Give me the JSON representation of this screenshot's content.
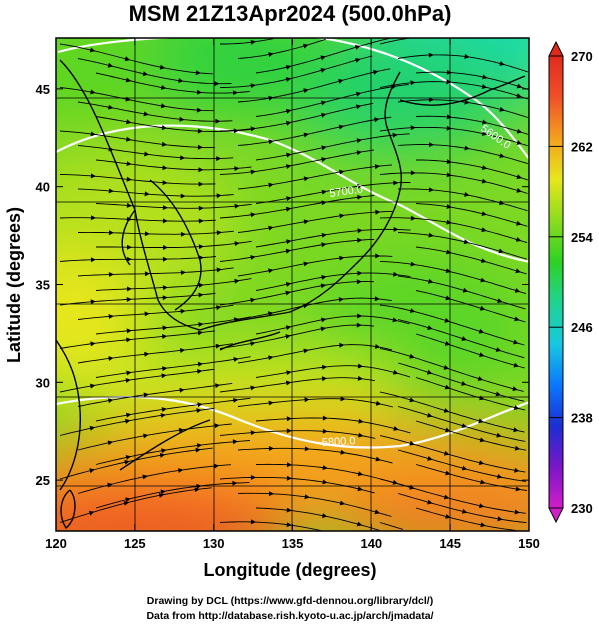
{
  "title": "MSM 21Z13Apr2024 (500.0hPa)",
  "xlabel": "Longitude (degrees)",
  "ylabel": "Latitude  (degrees)",
  "credit_lines": [
    "Drawing by DCL (https://www.gfd-dennou.org/library/dcl/)",
    "Data from http://database.rish.kyoto-u.ac.jp/arch/jmadata/"
  ],
  "chart_data": {
    "type": "heatmap",
    "title": "MSM 21Z13Apr2024 (500.0hPa)",
    "xlabel": "Longitude (degrees)",
    "ylabel": "Latitude  (degrees)",
    "xlim": [
      120,
      150
    ],
    "ylim": [
      22.4,
      47.6
    ],
    "xticks": [
      120,
      125,
      130,
      135,
      140,
      145,
      150
    ],
    "yticks": [
      25,
      30,
      35,
      40,
      45
    ],
    "grid": true,
    "colorbar": {
      "min": 230,
      "max": 270,
      "ticks": [
        230,
        238,
        246,
        254,
        262,
        270
      ],
      "colors": [
        "#d21ec8",
        "#7a16c8",
        "#1c2ed2",
        "#0a78ff",
        "#18c8e0",
        "#1ed490",
        "#2ed224",
        "#8cdc1e",
        "#e6e61e",
        "#f5a01e",
        "#f05028",
        "#e02a1e"
      ]
    },
    "contour_labels": [
      {
        "text": "5700.0",
        "lon": 136.0,
        "lat": 40.0
      },
      {
        "text": "5800.0",
        "lon": 141.0,
        "lat": 27.3
      },
      {
        "text": "5600.0",
        "lon": 146.5,
        "lat": 43.5
      }
    ]
  }
}
